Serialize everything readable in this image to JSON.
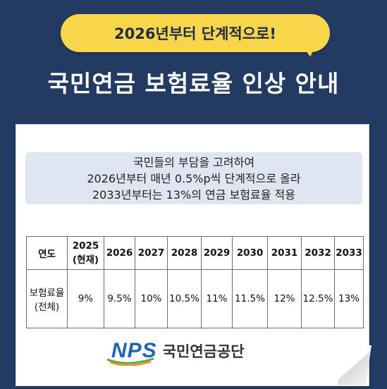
{
  "badge": {
    "text": "2026년부터 단계적으로!"
  },
  "title": "국민연금 보험료율 인상 안내",
  "info": {
    "lines": [
      "국민들의 부담을 고려하여",
      "2026년부터 매년 0.5%p씩 단계적으로 올라",
      "2033년부터는 13%의 연금 보험료율 적용"
    ]
  },
  "table": {
    "row_header_label": "연도",
    "years": [
      {
        "year": "2025",
        "note": "(현재)"
      },
      {
        "year": "2026",
        "note": ""
      },
      {
        "year": "2027",
        "note": ""
      },
      {
        "year": "2028",
        "note": ""
      },
      {
        "year": "2029",
        "note": ""
      },
      {
        "year": "2030",
        "note": ""
      },
      {
        "year": "2031",
        "note": ""
      },
      {
        "year": "2032",
        "note": ""
      },
      {
        "year": "2033",
        "note": ""
      }
    ],
    "row_label_main": "보험료율",
    "row_label_sub": "(전체)",
    "rates": [
      "9%",
      "9.5%",
      "10%",
      "10.5%",
      "11%",
      "11.5%",
      "12%",
      "12.5%",
      "13%"
    ]
  },
  "logo": {
    "mark": "NPS",
    "org_name": "국민연금공단"
  },
  "colors": {
    "background": "#233a63",
    "badge": "#f7d64b",
    "info_box": "#dfe6f2",
    "logo_blue": "#1d66b3",
    "logo_green": "#5aa93c",
    "logo_orange": "#f08a24"
  }
}
